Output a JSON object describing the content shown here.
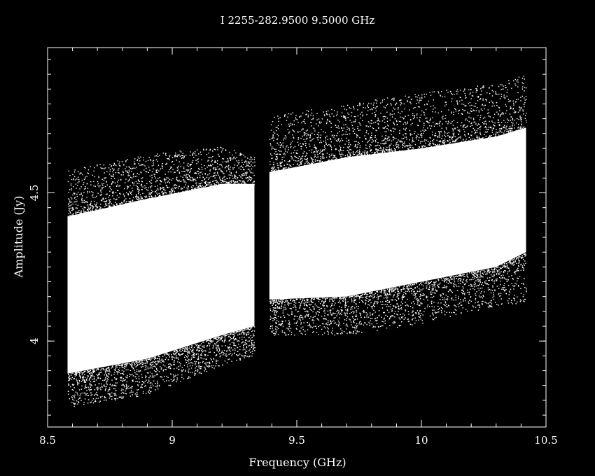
{
  "chart_data": {
    "type": "scatter",
    "title": "I 2255-282.9500  9.5000  GHz",
    "xlabel": "Frequency (GHz)",
    "ylabel": "Amplitude (Jy)",
    "xlim": [
      8.5,
      10.5
    ],
    "ylim": [
      3.71,
      4.99
    ],
    "x_ticks": [
      "8.5",
      "9",
      "9.5",
      "10",
      "10.5"
    ],
    "y_ticks": [
      "4",
      "4.5"
    ],
    "grid": false,
    "colors": {
      "background": "#000000",
      "points": "#ffffff",
      "axes": "#ffffff"
    },
    "series": [
      {
        "x_range": [
          8.58,
          9.33
        ],
        "core": [
          [
            8.58,
            3.89,
            4.42
          ],
          [
            8.9,
            3.94,
            4.48
          ],
          [
            9.2,
            4.02,
            4.53
          ],
          [
            9.33,
            4.05,
            4.53
          ]
        ],
        "outer": [
          [
            8.6,
            3.78,
            4.58
          ],
          [
            8.9,
            3.82,
            4.63
          ],
          [
            9.2,
            3.92,
            4.66
          ],
          [
            9.33,
            3.95,
            4.62
          ]
        ]
      },
      {
        "x_range": [
          9.39,
          10.42
        ],
        "core": [
          [
            9.39,
            4.14,
            4.57
          ],
          [
            9.7,
            4.15,
            4.62
          ],
          [
            10.0,
            4.2,
            4.65
          ],
          [
            10.3,
            4.25,
            4.69
          ],
          [
            10.42,
            4.3,
            4.72
          ]
        ],
        "outer": [
          [
            9.39,
            4.02,
            4.76
          ],
          [
            9.7,
            4.02,
            4.8
          ],
          [
            10.0,
            4.06,
            4.84
          ],
          [
            10.3,
            4.12,
            4.87
          ],
          [
            10.42,
            4.13,
            4.9
          ]
        ]
      }
    ]
  }
}
